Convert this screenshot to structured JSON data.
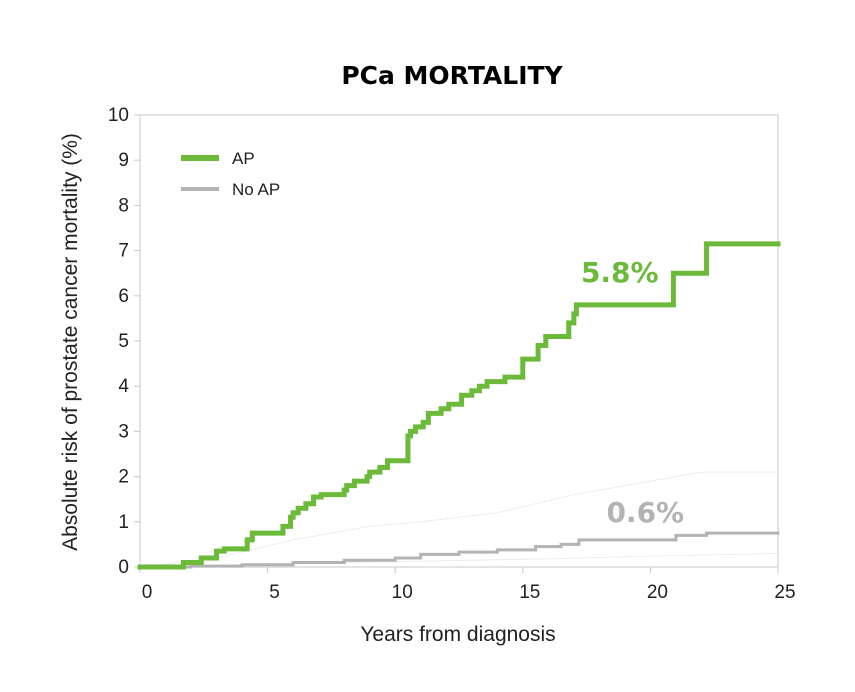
{
  "colors": {
    "ap": "#6cba3a",
    "no_ap": "#b3b3b3",
    "axis": "#c8c8c8",
    "text": "#222222"
  },
  "chart_data": {
    "type": "line",
    "title": "PCa MORTALITY",
    "xlabel": "Years from diagnosis",
    "ylabel": "Absolute risk of prostate cancer mortality (%)",
    "xlim": [
      0,
      25
    ],
    "ylim": [
      0,
      10
    ],
    "x_ticks": [
      "0",
      "5",
      "10",
      "15",
      "20",
      "25"
    ],
    "y_ticks": [
      "0",
      "1",
      "2",
      "3",
      "4",
      "5",
      "6",
      "7",
      "8",
      "9",
      "10"
    ],
    "grid": false,
    "legend_position": "top-left",
    "step": true,
    "series": [
      {
        "name": "AP",
        "color": "#6cba3a",
        "x": [
          0,
          1.7,
          2.4,
          3.0,
          3.3,
          4.2,
          4.4,
          5.6,
          5.9,
          6.0,
          6.2,
          6.5,
          6.8,
          7.1,
          7.2,
          8.0,
          8.1,
          8.4,
          8.9,
          9.0,
          9.4,
          9.7,
          10.5,
          10.6,
          10.8,
          11.1,
          11.3,
          11.8,
          12.1,
          12.6,
          13.0,
          13.3,
          13.6,
          14.3,
          15.0,
          15.6,
          15.9,
          16.8,
          17.0,
          17.1,
          20.9,
          22.2,
          25
        ],
        "y": [
          0,
          0.1,
          0.2,
          0.35,
          0.4,
          0.6,
          0.75,
          0.9,
          1.1,
          1.2,
          1.3,
          1.4,
          1.55,
          1.6,
          1.6,
          1.7,
          1.8,
          1.9,
          2.0,
          2.1,
          2.2,
          2.35,
          2.9,
          3.0,
          3.1,
          3.2,
          3.4,
          3.5,
          3.6,
          3.8,
          3.9,
          4.0,
          4.1,
          4.2,
          4.6,
          4.9,
          5.1,
          5.4,
          5.6,
          5.8,
          6.5,
          7.15,
          7.15
        ]
      },
      {
        "name": "No AP",
        "color": "#b3b3b3",
        "x": [
          0,
          2.0,
          4.0,
          6.0,
          8.0,
          10.0,
          11.0,
          12.5,
          14.0,
          15.5,
          16.5,
          17.2,
          21.0,
          22.2,
          25
        ],
        "y": [
          0,
          0.02,
          0.05,
          0.1,
          0.15,
          0.2,
          0.28,
          0.33,
          0.38,
          0.45,
          0.5,
          0.6,
          0.7,
          0.75,
          0.75
        ]
      }
    ],
    "annotations": [
      {
        "text": "5.8%",
        "series": "AP",
        "x": 18.8,
        "y": 6.3
      },
      {
        "text": "0.6%",
        "series": "No AP",
        "x": 19.8,
        "y": 1.0
      }
    ]
  }
}
